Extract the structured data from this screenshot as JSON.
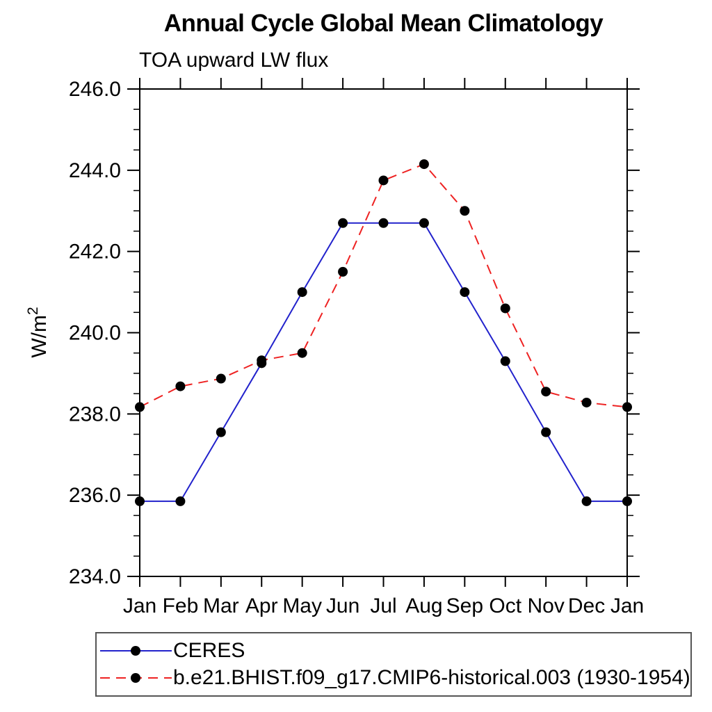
{
  "header": {
    "title": "Annual Cycle Global Mean Climatology",
    "subtitle": "TOA upward LW flux"
  },
  "chart_data": {
    "type": "line",
    "title": "Annual Cycle Global Mean Climatology",
    "subtitle": "TOA upward LW flux",
    "xlabel": "",
    "ylabel": "W/m²",
    "ylim": [
      234.0,
      246.0
    ],
    "ytick_major": 2.0,
    "ytick_minor": 0.5,
    "grid": false,
    "legend_position": "bottom",
    "marker": {
      "shape": "circle",
      "color": "#000000",
      "radius": 7
    },
    "categories": [
      "Jan",
      "Feb",
      "Mar",
      "Apr",
      "May",
      "Jun",
      "Jul",
      "Aug",
      "Sep",
      "Oct",
      "Nov",
      "Dec",
      "Jan"
    ],
    "series": [
      {
        "name": "CERES",
        "color": "#2222cc",
        "dash": "solid",
        "values": [
          235.85,
          235.85,
          237.55,
          239.25,
          241.0,
          242.7,
          242.7,
          242.7,
          241.0,
          239.3,
          237.55,
          235.85,
          235.85
        ]
      },
      {
        "name": "b.e21.BHIST.f09_g17.CMIP6-historical.003 (1930-1954)",
        "color": "#ee2222",
        "dash": "dashed",
        "values": [
          238.17,
          238.68,
          238.87,
          239.32,
          239.5,
          241.5,
          243.75,
          244.15,
          243.0,
          240.6,
          238.55,
          238.28,
          238.17
        ]
      }
    ]
  }
}
